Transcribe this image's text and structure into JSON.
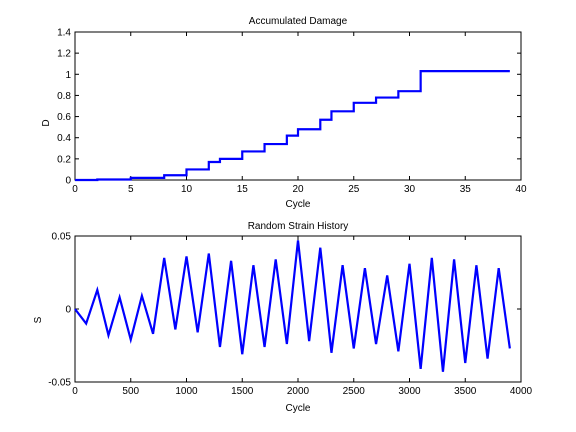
{
  "chart_data": [
    {
      "type": "line",
      "step": true,
      "title": "Accumulated Damage",
      "xlabel": "Cycle",
      "ylabel": "D",
      "xlim": [
        0,
        40
      ],
      "ylim": [
        0,
        1.4
      ],
      "xticks": [
        "0",
        "5",
        "10",
        "15",
        "20",
        "25",
        "30",
        "35",
        "40"
      ],
      "xtick_values": [
        0,
        5,
        10,
        15,
        20,
        25,
        30,
        35,
        40
      ],
      "yticks": [
        "0",
        "0.2",
        "0.4",
        "0.6",
        "0.8",
        "1",
        "1.2",
        "1.4"
      ],
      "ytick_values": [
        0,
        0.2,
        0.4,
        0.6,
        0.8,
        1.0,
        1.2,
        1.4
      ],
      "grid": false,
      "series": [
        {
          "color": "#0000ff",
          "x": [
            0,
            2,
            5,
            8,
            10,
            12,
            13,
            15,
            17,
            19,
            20,
            22,
            23,
            25,
            27,
            29,
            31,
            39
          ],
          "y": [
            0,
            0.005,
            0.02,
            0.045,
            0.1,
            0.17,
            0.2,
            0.27,
            0.34,
            0.42,
            0.48,
            0.57,
            0.65,
            0.73,
            0.78,
            0.84,
            1.03,
            1.03
          ]
        }
      ]
    },
    {
      "type": "line",
      "title": "Random Strain History",
      "xlabel": "Cycle",
      "ylabel": "S",
      "xlim": [
        0,
        4000
      ],
      "ylim": [
        -0.05,
        0.05
      ],
      "xticks": [
        "0",
        "500",
        "1000",
        "1500",
        "2000",
        "2500",
        "3000",
        "3500",
        "4000"
      ],
      "xtick_values": [
        0,
        500,
        1000,
        1500,
        2000,
        2500,
        3000,
        3500,
        4000
      ],
      "yticks": [
        "-0.05",
        "0",
        "0.05"
      ],
      "ytick_values": [
        -0.05,
        0,
        0.05
      ],
      "grid": false,
      "series": [
        {
          "color": "#0000ff",
          "x": [
            0,
            100,
            200,
            300,
            400,
            500,
            600,
            700,
            800,
            900,
            1000,
            1100,
            1200,
            1300,
            1400,
            1500,
            1600,
            1700,
            1800,
            1900,
            2000,
            2100,
            2200,
            2300,
            2400,
            2500,
            2600,
            2700,
            2800,
            2900,
            3000,
            3100,
            3200,
            3300,
            3400,
            3500,
            3600,
            3700,
            3800,
            3900
          ],
          "y": [
            0,
            -0.01,
            0.013,
            -0.018,
            0.008,
            -0.021,
            0.009,
            -0.017,
            0.035,
            -0.014,
            0.036,
            -0.016,
            0.038,
            -0.026,
            0.033,
            -0.031,
            0.03,
            -0.026,
            0.034,
            -0.024,
            0.047,
            -0.022,
            0.042,
            -0.03,
            0.03,
            -0.027,
            0.028,
            -0.024,
            0.023,
            -0.029,
            0.031,
            -0.041,
            0.035,
            -0.043,
            0.034,
            -0.037,
            0.03,
            -0.034,
            0.028,
            -0.027
          ]
        }
      ]
    }
  ]
}
